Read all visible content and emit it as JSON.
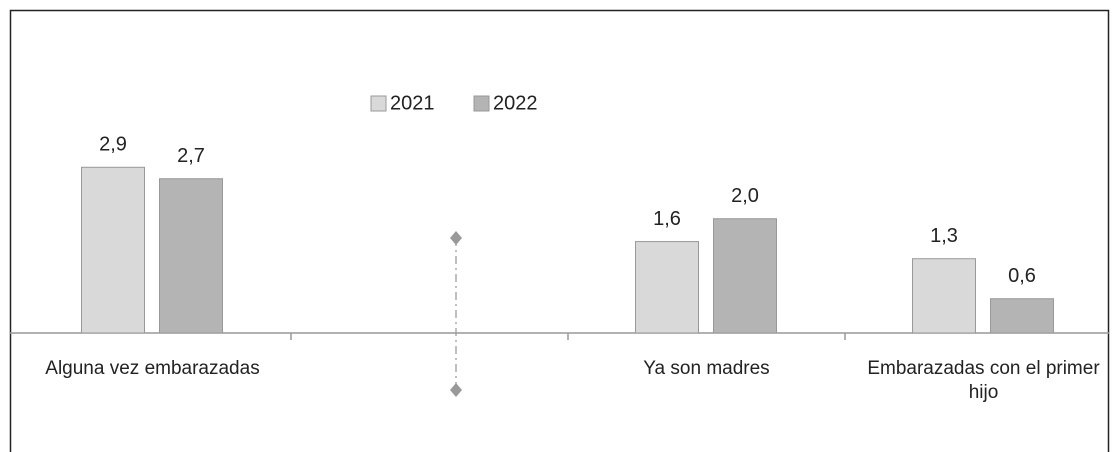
{
  "chart_data": {
    "type": "bar",
    "categories": [
      "Alguna vez embarazadas",
      null,
      "Ya son madres",
      "Embarazadas con el primer hijo"
    ],
    "series": [
      {
        "name": "2021",
        "color": "#d9d9d9",
        "values": [
          2.9,
          null,
          1.6,
          1.3
        ],
        "value_labels": [
          "2,9",
          null,
          "1,6",
          "1,3"
        ]
      },
      {
        "name": "2022",
        "color": "#b4b4b4",
        "values": [
          2.7,
          null,
          2.0,
          0.6
        ],
        "value_labels": [
          "2,7",
          null,
          "2,0",
          "0,6"
        ]
      }
    ],
    "ylim": [
      0,
      3.5
    ]
  }
}
